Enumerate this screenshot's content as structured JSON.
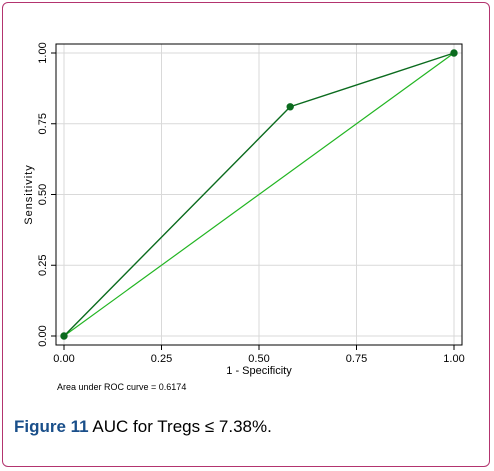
{
  "chart_data": {
    "type": "line",
    "title": "",
    "xlabel": "1 - Specificity",
    "ylabel": "Sensitivity",
    "xlim": [
      0,
      1
    ],
    "ylim": [
      0,
      1
    ],
    "x_ticks": [
      "0.00",
      "0.25",
      "0.50",
      "0.75",
      "1.00"
    ],
    "y_ticks": [
      "0.00",
      "0.25",
      "0.50",
      "0.75",
      "1.00"
    ],
    "grid": true,
    "series": [
      {
        "kind": "roc_curve",
        "color": "#0b6b1e",
        "points": [
          {
            "x": 0.0,
            "y": 0.0
          },
          {
            "x": 0.58,
            "y": 0.81
          },
          {
            "x": 1.0,
            "y": 1.0
          }
        ]
      },
      {
        "kind": "reference_line",
        "color": "#22b522",
        "points": [
          {
            "x": 0.0,
            "y": 0.0
          },
          {
            "x": 1.0,
            "y": 1.0
          }
        ]
      }
    ],
    "annotation": "Area under ROC curve = 0.6174"
  },
  "caption": {
    "label": "Figure 11",
    "text": " AUC for Tregs ≤ 7.38%."
  },
  "colors": {
    "frame_border": "#b3346f",
    "caption_label": "#1a4f8a",
    "grid": "#d9d9d9"
  }
}
